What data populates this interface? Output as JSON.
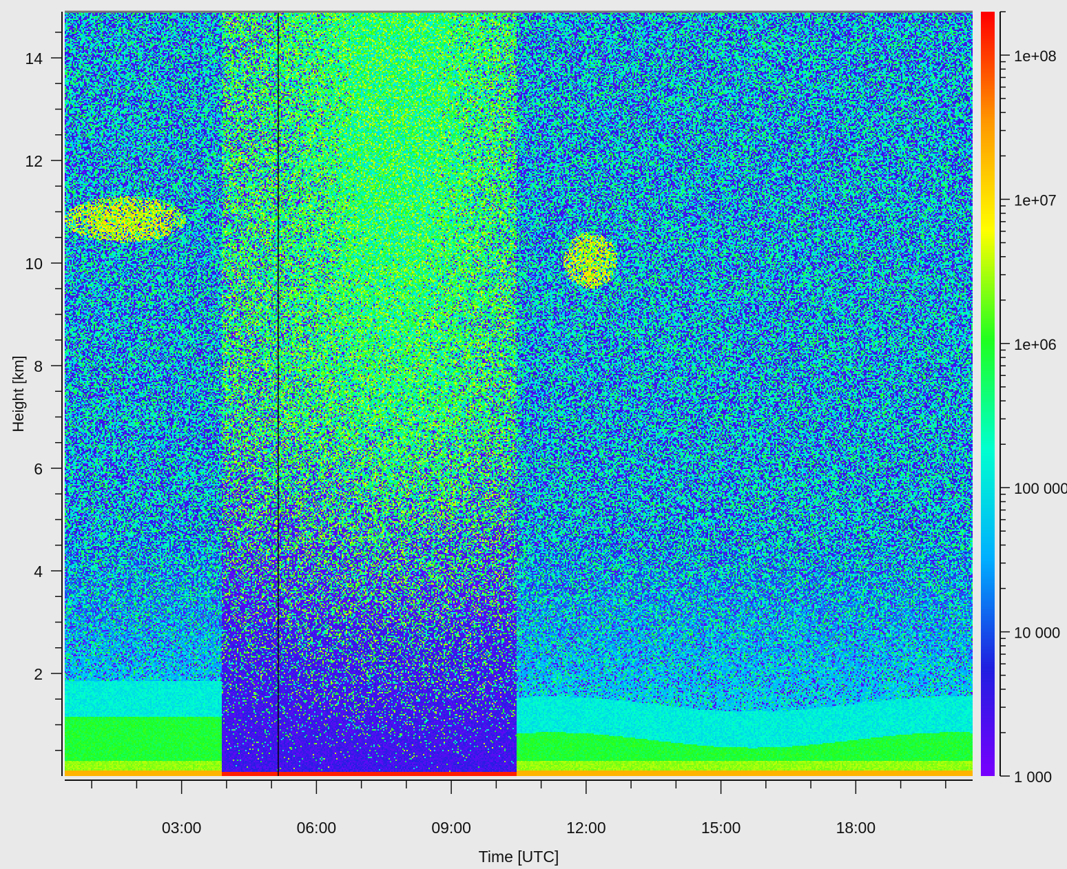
{
  "chart_data": {
    "type": "heatmap",
    "title": "",
    "xlabel": "Time [UTC]",
    "ylabel": "Height [km]",
    "x_ticks": [
      "03:00",
      "06:00",
      "09:00",
      "12:00",
      "15:00",
      "18:00"
    ],
    "x_tick_hours": [
      3,
      6,
      9,
      12,
      15,
      18
    ],
    "xlim_hours": [
      0.4,
      20.6
    ],
    "y_ticks": [
      2,
      4,
      6,
      8,
      10,
      12,
      14
    ],
    "ylim_km": [
      0,
      14.9
    ],
    "colorbar": {
      "scale": "log",
      "range": [
        1000,
        200000000
      ],
      "tick_values": [
        1000,
        10000,
        100000,
        1000000,
        10000000,
        100000000
      ],
      "tick_labels": [
        "1 000",
        "10 000",
        "100 000",
        "1e+06",
        "1e+07",
        "1e+08"
      ],
      "colors": [
        "#7a00ff",
        "#2020e0",
        "#00b0ff",
        "#00ffd0",
        "#20ff20",
        "#ffff00",
        "#ff9900",
        "#ff0000"
      ]
    },
    "marker_line_hour": 5.15,
    "features": [
      {
        "kind": "low-signal gap",
        "t_start": 3.9,
        "t_end": 10.45
      },
      {
        "kind": "boundary layer",
        "height_km": [
          0,
          1.2
        ]
      },
      {
        "kind": "cirrus",
        "t_range": [
          0.4,
          3.1
        ],
        "height_km": [
          10.4,
          11.3
        ]
      },
      {
        "kind": "cirrus",
        "t_range": [
          11.5,
          12.7
        ],
        "height_km": [
          9.5,
          10.6
        ]
      }
    ]
  },
  "colors": {
    "background": "#e9e9e9",
    "axis": "#111111",
    "plot_background": "#7a00ff"
  }
}
